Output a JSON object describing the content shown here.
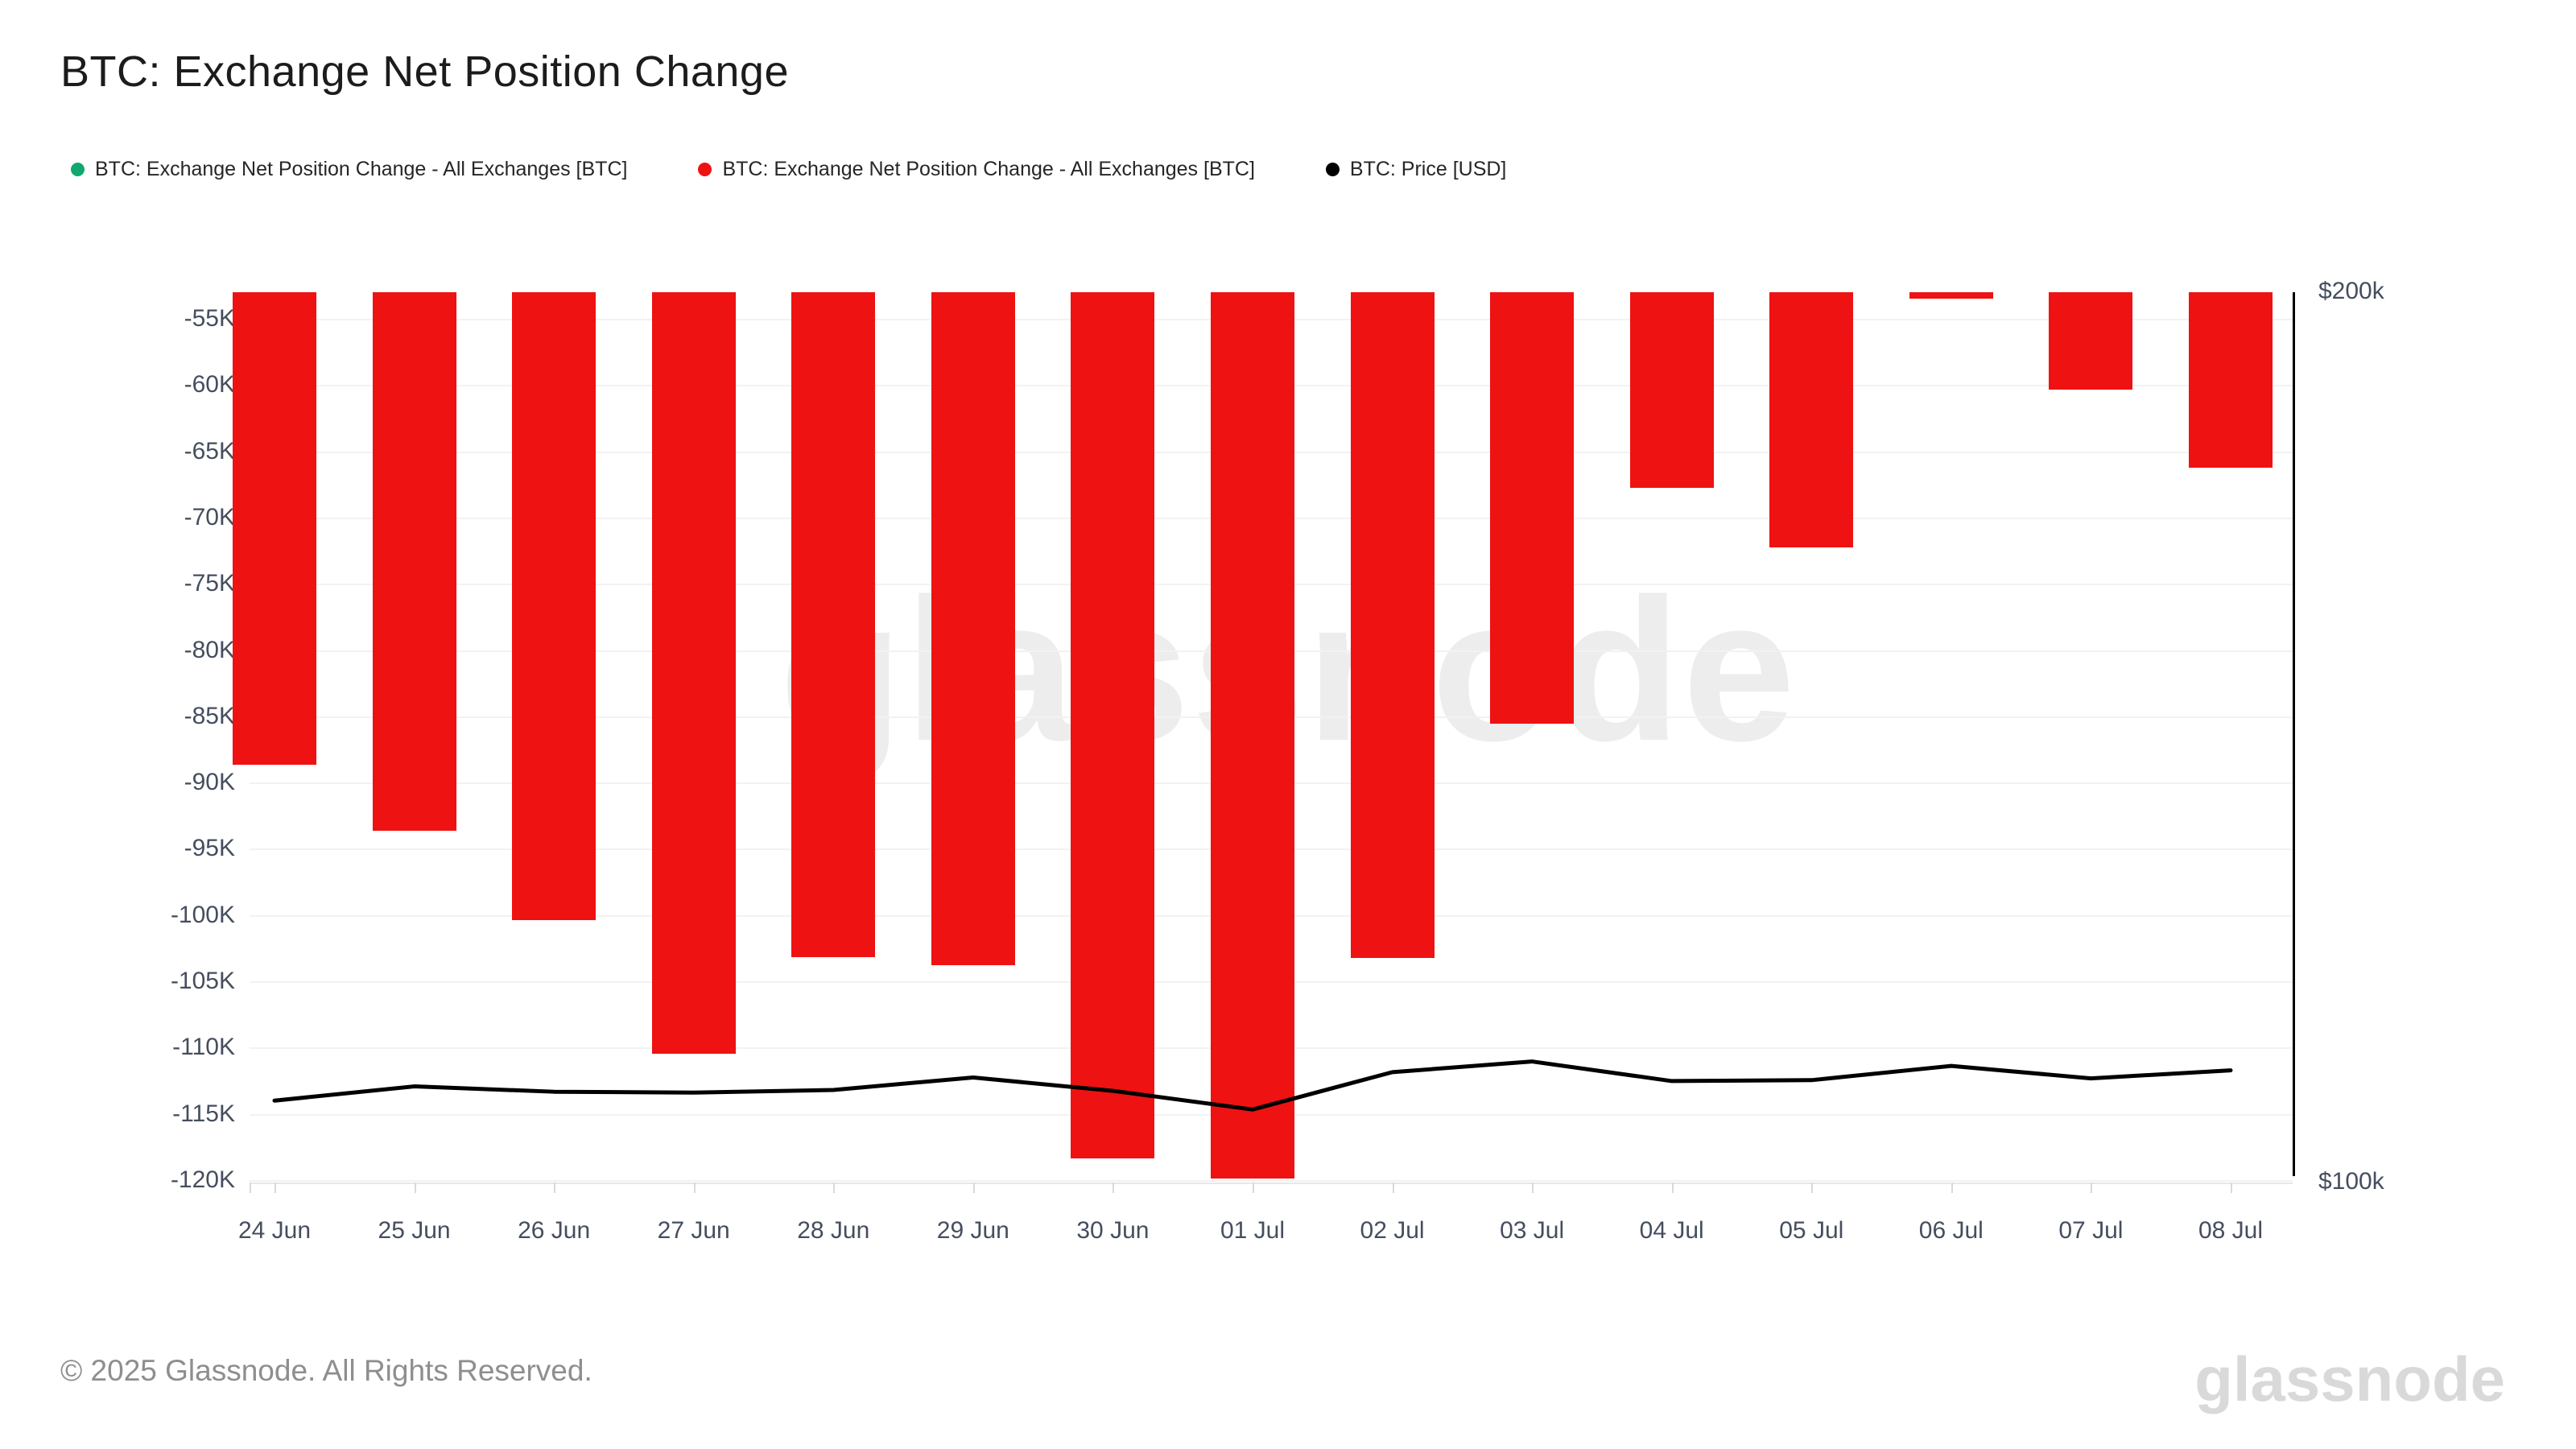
{
  "page": {
    "title": "BTC: Exchange Net Position Change"
  },
  "legend": {
    "items": [
      {
        "label": "BTC: Exchange Net Position Change - All Exchanges [BTC]",
        "marker": "green-dot",
        "color": "#10a86e"
      },
      {
        "label": "BTC: Exchange Net Position Change - All Exchanges [BTC]",
        "marker": "red-dot",
        "color": "#ee1212"
      },
      {
        "label": "BTC: Price [USD]",
        "marker": "black-dot",
        "color": "#000000"
      }
    ]
  },
  "watermark_text": "glassnode",
  "footer": {
    "copyright": "© 2025 Glassnode. All Rights Reserved.",
    "brand_logo_text": "glassnode"
  },
  "chart_data": {
    "type": "bar",
    "title": "BTC: Exchange Net Position Change",
    "categories": [
      "24 Jun",
      "25 Jun",
      "26 Jun",
      "27 Jun",
      "28 Jun",
      "29 Jun",
      "30 Jun",
      "01 Jul",
      "02 Jul",
      "03 Jul",
      "04 Jul",
      "05 Jul",
      "06 Jul",
      "07 Jul",
      "08 Jul"
    ],
    "series": [
      {
        "name": "BTC: Exchange Net Position Change - All Exchanges [BTC]",
        "type": "bar",
        "color": "#ee1212",
        "y_axis": "left",
        "unit": "BTC",
        "values": [
          -88600,
          -93600,
          -100300,
          -110400,
          -103100,
          -103700,
          -118300,
          -119800,
          -103200,
          -85500,
          -67700,
          -72200,
          -53400,
          -60300,
          -66200
        ]
      },
      {
        "name": "BTC: Price [USD]",
        "type": "line",
        "color": "#000000",
        "y_axis": "right",
        "unit": "USD",
        "values": [
          109200,
          110800,
          110200,
          110100,
          110400,
          111800,
          110300,
          108200,
          112400,
          113600,
          111400,
          111500,
          113100,
          111700,
          112600
        ]
      }
    ],
    "left_axis": {
      "tick_labels": [
        "-55K",
        "-60K",
        "-65K",
        "-70K",
        "-75K",
        "-80K",
        "-85K",
        "-90K",
        "-95K",
        "-100K",
        "-105K",
        "-110K",
        "-115K",
        "-120K"
      ],
      "tick_values": [
        -55000,
        -60000,
        -65000,
        -70000,
        -75000,
        -80000,
        -85000,
        -90000,
        -95000,
        -100000,
        -105000,
        -110000,
        -115000,
        -120000
      ],
      "visible_range": [
        -120200,
        -52900
      ]
    },
    "right_axis": {
      "tick_labels": [
        "$200k",
        "$100k"
      ],
      "tick_values": [
        200000,
        100000
      ]
    },
    "grid": true,
    "legend_position": "top-left",
    "bars_clipped_at_top": true
  }
}
